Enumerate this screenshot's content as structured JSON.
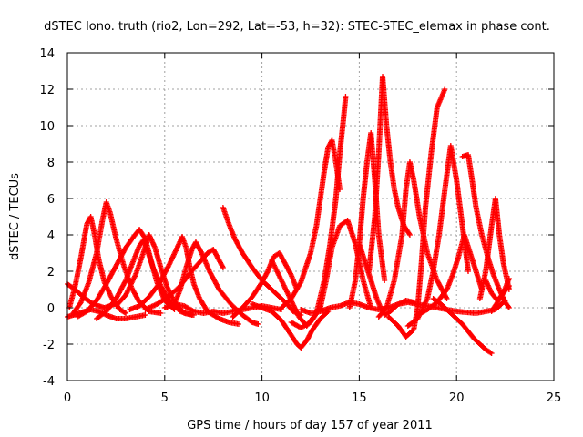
{
  "chart_data": {
    "type": "scatter",
    "title": "dSTEC Iono. truth (rio2, Lon=292, Lat=-53, h=32): STEC-STEC_elemax in phase cont.",
    "xlabel": "GPS time / hours of day 157 of year 2011",
    "ylabel": "dSTEC  / TECUs",
    "xlim": [
      0,
      25
    ],
    "ylim": [
      -4,
      14
    ],
    "x_ticks": [
      "0",
      "5",
      "10",
      "15",
      "20",
      "25"
    ],
    "y_ticks": [
      "-4",
      "-2",
      "0",
      "2",
      "4",
      "6",
      "8",
      "10",
      "12",
      "14"
    ],
    "grid": true,
    "marker": "+",
    "colors": {
      "series": "#ff0000",
      "grid": "#a0a0a0",
      "axis": "#000000"
    },
    "series": [
      {
        "x": [
          0.0,
          0.4,
          0.8,
          1.2,
          1.6,
          1.9,
          2.2,
          2.4,
          2.5
        ],
        "y": [
          1.3,
          1.0,
          0.6,
          0.3,
          0.1,
          0.0,
          0.1,
          0.2,
          0.3
        ]
      },
      {
        "x": [
          0.0,
          0.3,
          0.6,
          0.9,
          1.2,
          1.6,
          2.0,
          2.5,
          3.0,
          3.5,
          4.0
        ],
        "y": [
          -0.5,
          -0.4,
          -0.3,
          -0.2,
          -0.1,
          -0.2,
          -0.4,
          -0.6,
          -0.6,
          -0.5,
          -0.4
        ]
      },
      {
        "x": [
          0.1,
          0.4,
          0.7,
          1.0,
          1.2,
          1.4,
          1.6,
          1.9,
          2.3,
          2.7,
          3.0
        ],
        "y": [
          0.0,
          1.2,
          2.8,
          4.6,
          5.0,
          4.0,
          2.7,
          1.4,
          0.5,
          -0.1,
          -0.3
        ]
      },
      {
        "x": [
          0.3,
          0.7,
          1.1,
          1.5,
          1.8,
          2.0,
          2.2,
          2.5,
          2.9,
          3.3,
          3.7,
          4.2,
          4.8
        ],
        "y": [
          -0.3,
          0.3,
          1.4,
          3.0,
          4.8,
          5.8,
          5.2,
          3.8,
          2.3,
          1.1,
          0.3,
          -0.2,
          -0.3
        ]
      },
      {
        "x": [
          0.5,
          1.0,
          1.5,
          2.0,
          2.5,
          3.0,
          3.4,
          3.7,
          4.0,
          4.3,
          4.6,
          5.0,
          5.5
        ],
        "y": [
          -0.5,
          -0.2,
          0.4,
          1.3,
          2.3,
          3.3,
          3.9,
          4.3,
          3.8,
          2.6,
          1.4,
          0.4,
          -0.1
        ]
      },
      {
        "x": [
          1.5,
          2.0,
          2.5,
          3.0,
          3.4,
          3.7,
          3.9,
          4.1,
          4.4,
          4.8,
          5.2,
          5.8,
          6.4
        ],
        "y": [
          -0.6,
          -0.2,
          0.5,
          1.5,
          2.6,
          3.4,
          3.7,
          3.2,
          2.2,
          1.2,
          0.4,
          -0.2,
          -0.4
        ]
      },
      {
        "x": [
          2.5,
          3.0,
          3.5,
          3.9,
          4.2,
          4.5,
          4.8,
          5.1,
          5.5,
          6.0,
          6.5
        ],
        "y": [
          0.1,
          0.7,
          1.8,
          3.0,
          4.0,
          3.3,
          2.2,
          1.2,
          0.3,
          -0.3,
          -0.4
        ]
      },
      {
        "x": [
          3.2,
          3.7,
          4.2,
          4.7,
          5.2,
          5.6,
          5.9,
          6.1,
          6.3,
          6.5,
          6.8,
          7.2,
          7.8,
          8.3,
          8.8
        ],
        "y": [
          -0.1,
          0.1,
          0.6,
          1.3,
          2.3,
          3.2,
          3.9,
          3.3,
          2.2,
          1.3,
          0.5,
          -0.2,
          -0.6,
          -0.8,
          -0.9
        ]
      },
      {
        "x": [
          4.0,
          4.6,
          5.2,
          5.8,
          6.3,
          6.8,
          7.2,
          7.5,
          7.8,
          8.0
        ],
        "y": [
          -0.1,
          0.2,
          0.6,
          1.2,
          1.9,
          2.5,
          3.0,
          3.2,
          2.6,
          2.2
        ]
      },
      {
        "x": [
          5.5,
          5.8,
          6.1,
          6.4,
          6.6,
          6.9,
          7.3,
          7.8,
          8.4,
          9.0,
          9.5,
          9.8
        ],
        "y": [
          0.2,
          1.0,
          2.2,
          3.2,
          3.6,
          3.0,
          2.0,
          1.0,
          0.2,
          -0.4,
          -0.8,
          -0.9
        ]
      },
      {
        "x": [
          5.0,
          5.5,
          6.0,
          6.5,
          7.0,
          7.5,
          8.0,
          8.5,
          9.0,
          9.5,
          10.0,
          10.5,
          11.0
        ],
        "y": [
          0.0,
          0.2,
          0.1,
          -0.2,
          -0.3,
          -0.2,
          -0.3,
          -0.2,
          -0.1,
          0.0,
          0.1,
          0.0,
          -0.1
        ]
      },
      {
        "x": [
          8.0,
          8.3,
          8.6,
          9.0,
          9.5,
          10.0,
          10.5,
          11.0,
          11.3,
          11.6,
          12.0
        ],
        "y": [
          5.5,
          4.6,
          3.8,
          3.0,
          2.2,
          1.5,
          1.0,
          0.5,
          0.2,
          -0.2,
          -0.4
        ]
      },
      {
        "x": [
          8.5,
          9.0,
          9.5,
          10.0,
          10.3,
          10.6,
          10.9,
          11.2,
          11.5,
          11.8
        ],
        "y": [
          -0.5,
          0.0,
          0.6,
          1.4,
          2.0,
          2.8,
          3.0,
          2.4,
          1.8,
          1.0
        ]
      },
      {
        "x": [
          9.5,
          10.0,
          10.5,
          11.0,
          11.5,
          11.8,
          12.0,
          12.3,
          12.6,
          13.0,
          13.4
        ],
        "y": [
          0.2,
          0.0,
          -0.2,
          -0.7,
          -1.5,
          -2.0,
          -2.2,
          -1.8,
          -1.2,
          -0.6,
          -0.2
        ]
      },
      {
        "x": [
          10.5,
          11.0,
          11.5,
          11.9,
          12.3,
          12.8,
          13.2,
          13.5,
          13.8,
          14.0,
          14.2,
          14.3
        ],
        "y": [
          2.6,
          1.5,
          0.4,
          -0.5,
          -1.0,
          -0.3,
          1.5,
          3.5,
          6.0,
          8.5,
          10.5,
          11.6
        ]
      },
      {
        "x": [
          11.0,
          11.5,
          12.0,
          12.5,
          12.8,
          13.0,
          13.2,
          13.4,
          13.6,
          13.8,
          14.0
        ],
        "y": [
          0.0,
          0.5,
          1.4,
          3.0,
          4.5,
          6.0,
          7.5,
          8.8,
          9.2,
          8.0,
          6.5
        ]
      },
      {
        "x": [
          11.5,
          12.0,
          12.5,
          13.0,
          13.3,
          13.6,
          14.0,
          14.4,
          14.8,
          15.2,
          15.6
        ],
        "y": [
          -0.8,
          -1.1,
          -0.8,
          0.0,
          1.5,
          3.3,
          4.5,
          4.8,
          3.5,
          1.5,
          0.0
        ]
      },
      {
        "x": [
          12.0,
          12.5,
          13.0,
          13.5,
          14.0,
          14.5,
          15.0,
          15.5,
          16.0,
          16.5,
          17.0,
          17.5,
          18.0,
          19.0,
          20.0,
          21.0,
          22.0,
          22.5
        ],
        "y": [
          -0.1,
          -0.3,
          -0.2,
          0.0,
          0.1,
          0.3,
          0.2,
          0.0,
          -0.1,
          0.0,
          0.2,
          0.3,
          0.2,
          0.0,
          -0.2,
          -0.3,
          -0.1,
          0.4
        ]
      },
      {
        "x": [
          14.5,
          14.8,
          15.0,
          15.2,
          15.4,
          15.6,
          15.8,
          16.0,
          16.3
        ],
        "y": [
          0.0,
          1.5,
          3.5,
          6.0,
          8.0,
          9.6,
          7.0,
          4.0,
          1.5
        ]
      },
      {
        "x": [
          15.0,
          15.3,
          15.6,
          15.9,
          16.1,
          16.3,
          16.6,
          17.0,
          17.4,
          17.8
        ],
        "y": [
          3.5,
          2.5,
          1.5,
          0.5,
          0.0,
          -0.4,
          -0.2,
          0.2,
          0.4,
          0.3
        ]
      },
      {
        "x": [
          15.5,
          15.8,
          16.0,
          16.2,
          16.4,
          16.6,
          16.8,
          17.0,
          17.3,
          17.6
        ],
        "y": [
          2.0,
          5.0,
          8.5,
          12.7,
          10.0,
          8.0,
          6.5,
          5.5,
          4.5,
          4.0
        ]
      },
      {
        "x": [
          16.0,
          16.4,
          16.8,
          17.2,
          17.4,
          17.6,
          17.8,
          18.1,
          18.5,
          19.0,
          19.5
        ],
        "y": [
          -0.5,
          0.0,
          1.5,
          4.0,
          6.5,
          8.0,
          7.0,
          5.0,
          3.0,
          1.5,
          0.5
        ]
      },
      {
        "x": [
          16.5,
          17.0,
          17.4,
          17.8,
          18.0,
          18.2,
          18.4,
          18.7,
          19.0,
          19.4
        ],
        "y": [
          -0.5,
          -1.0,
          -1.6,
          -1.2,
          0.0,
          2.5,
          5.5,
          8.5,
          11.0,
          12.0
        ]
      },
      {
        "x": [
          17.5,
          18.0,
          18.5,
          18.8,
          19.1,
          19.4,
          19.7,
          20.0,
          20.3,
          20.6
        ],
        "y": [
          -1.0,
          -0.6,
          0.5,
          2.0,
          4.0,
          6.5,
          8.9,
          7.0,
          4.5,
          2.0
        ]
      },
      {
        "x": [
          18.0,
          18.5,
          19.0,
          19.5,
          19.8,
          20.1,
          20.4,
          20.7,
          21.0,
          21.3
        ],
        "y": [
          -0.4,
          -0.1,
          0.3,
          1.0,
          1.8,
          2.8,
          4.0,
          3.0,
          2.0,
          1.0
        ]
      },
      {
        "x": [
          18.8,
          19.2,
          19.6,
          20.0,
          20.3,
          20.6,
          20.9,
          21.2,
          21.5,
          21.8
        ],
        "y": [
          0.5,
          0.2,
          -0.2,
          -0.6,
          -0.9,
          -1.3,
          -1.7,
          -2.0,
          -2.3,
          -2.5
        ]
      },
      {
        "x": [
          20.3,
          20.6,
          20.8,
          21.0,
          21.3,
          21.6,
          21.9,
          22.2,
          22.5,
          22.7
        ],
        "y": [
          8.3,
          8.4,
          7.0,
          5.5,
          4.0,
          2.8,
          1.8,
          1.0,
          0.3,
          0.0
        ]
      },
      {
        "x": [
          21.2,
          21.5,
          21.8,
          22.0,
          22.2,
          22.4,
          22.6,
          22.7
        ],
        "y": [
          0.5,
          2.0,
          4.5,
          6.0,
          4.0,
          2.5,
          1.5,
          1.0
        ]
      },
      {
        "x": [
          21.5,
          21.8,
          22.1,
          22.4,
          22.7
        ],
        "y": [
          1.5,
          0.8,
          0.4,
          0.8,
          1.6
        ]
      },
      {
        "x": [
          21.8,
          22.1,
          22.4,
          22.7
        ],
        "y": [
          -0.2,
          0.3,
          0.8,
          1.2
        ]
      }
    ]
  }
}
